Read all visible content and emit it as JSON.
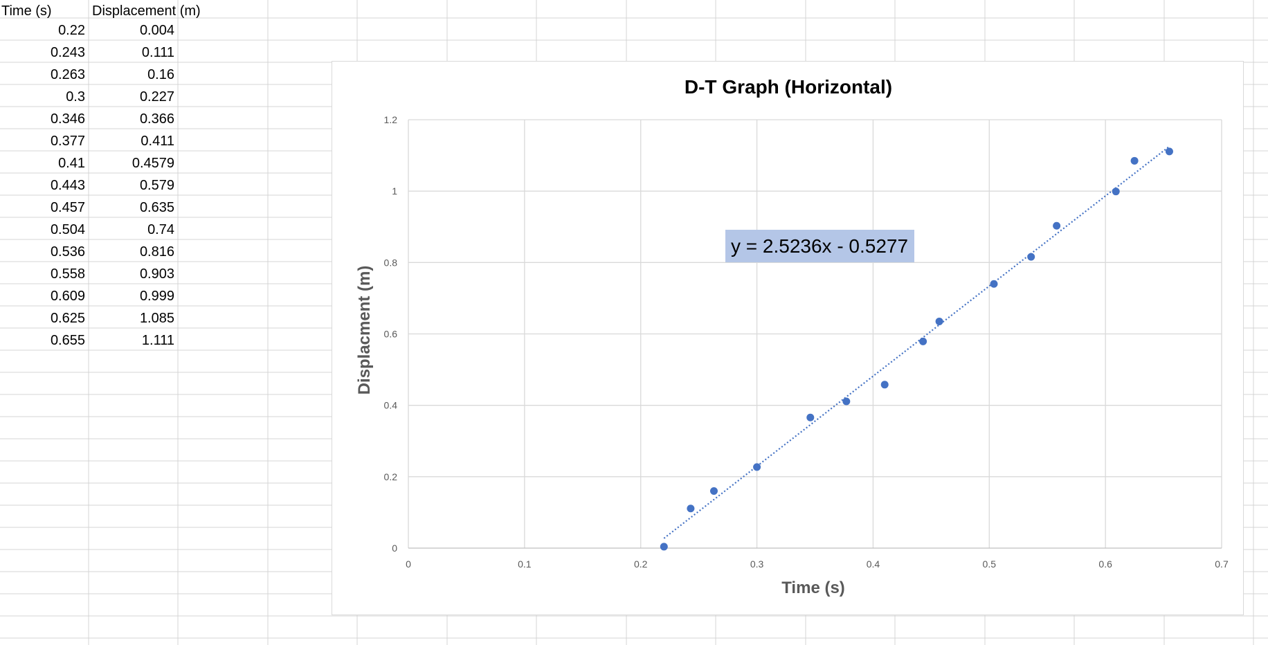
{
  "sheet": {
    "headers": {
      "time": "Time (s)",
      "displacement": "Displacement (m)"
    },
    "rows": [
      [
        "0.22",
        "0.004"
      ],
      [
        "0.243",
        "0.111"
      ],
      [
        "0.263",
        "0.16"
      ],
      [
        "0.3",
        "0.227"
      ],
      [
        "0.346",
        "0.366"
      ],
      [
        "0.377",
        "0.411"
      ],
      [
        "0.41",
        "0.4579"
      ],
      [
        "0.443",
        "0.579"
      ],
      [
        "0.457",
        "0.635"
      ],
      [
        "0.504",
        "0.74"
      ],
      [
        "0.536",
        "0.816"
      ],
      [
        "0.558",
        "0.903"
      ],
      [
        "0.609",
        "0.999"
      ],
      [
        "0.625",
        "1.085"
      ],
      [
        "0.655",
        "1.111"
      ]
    ]
  },
  "chart_data": {
    "type": "scatter",
    "title": "D-T Graph (Horizontal)",
    "xlabel": "Time (s)",
    "ylabel": "Displacment (m)",
    "xlim": [
      0,
      0.7
    ],
    "ylim": [
      0,
      1.2
    ],
    "xticks": [
      "0",
      "0.1",
      "0.2",
      "0.3",
      "0.4",
      "0.5",
      "0.6",
      "0.7"
    ],
    "yticks": [
      "0",
      "0.2",
      "0.4",
      "0.6",
      "0.8",
      "1",
      "1.2"
    ],
    "grid": true,
    "legend": "none",
    "colors": {
      "points": "#4472C4",
      "trendline": "#4472C4",
      "equation_bg": "#B4C6E7"
    },
    "x": [
      0.22,
      0.243,
      0.263,
      0.3,
      0.346,
      0.377,
      0.41,
      0.443,
      0.457,
      0.504,
      0.536,
      0.558,
      0.609,
      0.625,
      0.655
    ],
    "y": [
      0.004,
      0.111,
      0.16,
      0.227,
      0.366,
      0.411,
      0.4579,
      0.579,
      0.635,
      0.74,
      0.816,
      0.903,
      0.999,
      1.085,
      1.111
    ],
    "trendline": {
      "type": "linear",
      "slope": 2.5236,
      "intercept": -0.5277,
      "style": "dotted",
      "equation_label": "y = 2.5236x - 0.5277"
    }
  }
}
